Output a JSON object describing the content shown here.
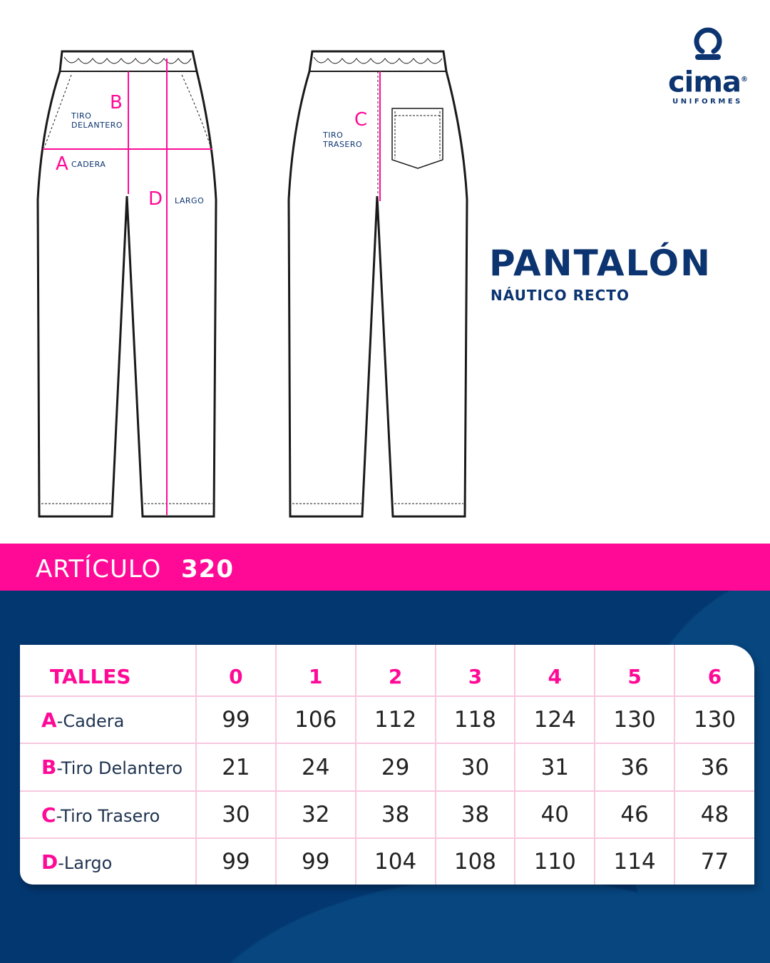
{
  "brand": {
    "name": "cima",
    "registered": "®",
    "tagline": "UNIFORMES",
    "color": "#0b3470"
  },
  "product": {
    "title": "PANTALÓN",
    "subtitle": "NÁUTICO RECTO"
  },
  "diagram": {
    "front": {
      "letter_b": "B",
      "tiro_delantero_1": "TIRO",
      "tiro_delantero_2": "DELANTERO",
      "letter_a": "A",
      "cadera": "CADERA",
      "letter_d": "D",
      "largo": "LARGO"
    },
    "back": {
      "letter_c": "C",
      "tiro_trasero_1": "TIRO",
      "tiro_trasero_2": "TRASERO"
    }
  },
  "article": {
    "label": "ARTÍCULO",
    "number": "320"
  },
  "colors": {
    "accent": "#ff0a96",
    "navy": "#033770"
  },
  "size_table": {
    "header_label": "TALLES",
    "sizes": [
      "0",
      "1",
      "2",
      "3",
      "4",
      "5",
      "6"
    ],
    "rows": [
      {
        "letter": "A",
        "name": "-Cadera",
        "values": [
          "99",
          "106",
          "112",
          "118",
          "124",
          "130",
          "130"
        ]
      },
      {
        "letter": "B",
        "name": "-Tiro Delantero",
        "values": [
          "21",
          "24",
          "29",
          "30",
          "31",
          "36",
          "36"
        ]
      },
      {
        "letter": "C",
        "name": "-Tiro Trasero",
        "values": [
          "30",
          "32",
          "38",
          "38",
          "40",
          "46",
          "48"
        ]
      },
      {
        "letter": "D",
        "name": "-Largo",
        "values": [
          "99",
          "99",
          "104",
          "108",
          "110",
          "114",
          "77"
        ]
      }
    ]
  }
}
